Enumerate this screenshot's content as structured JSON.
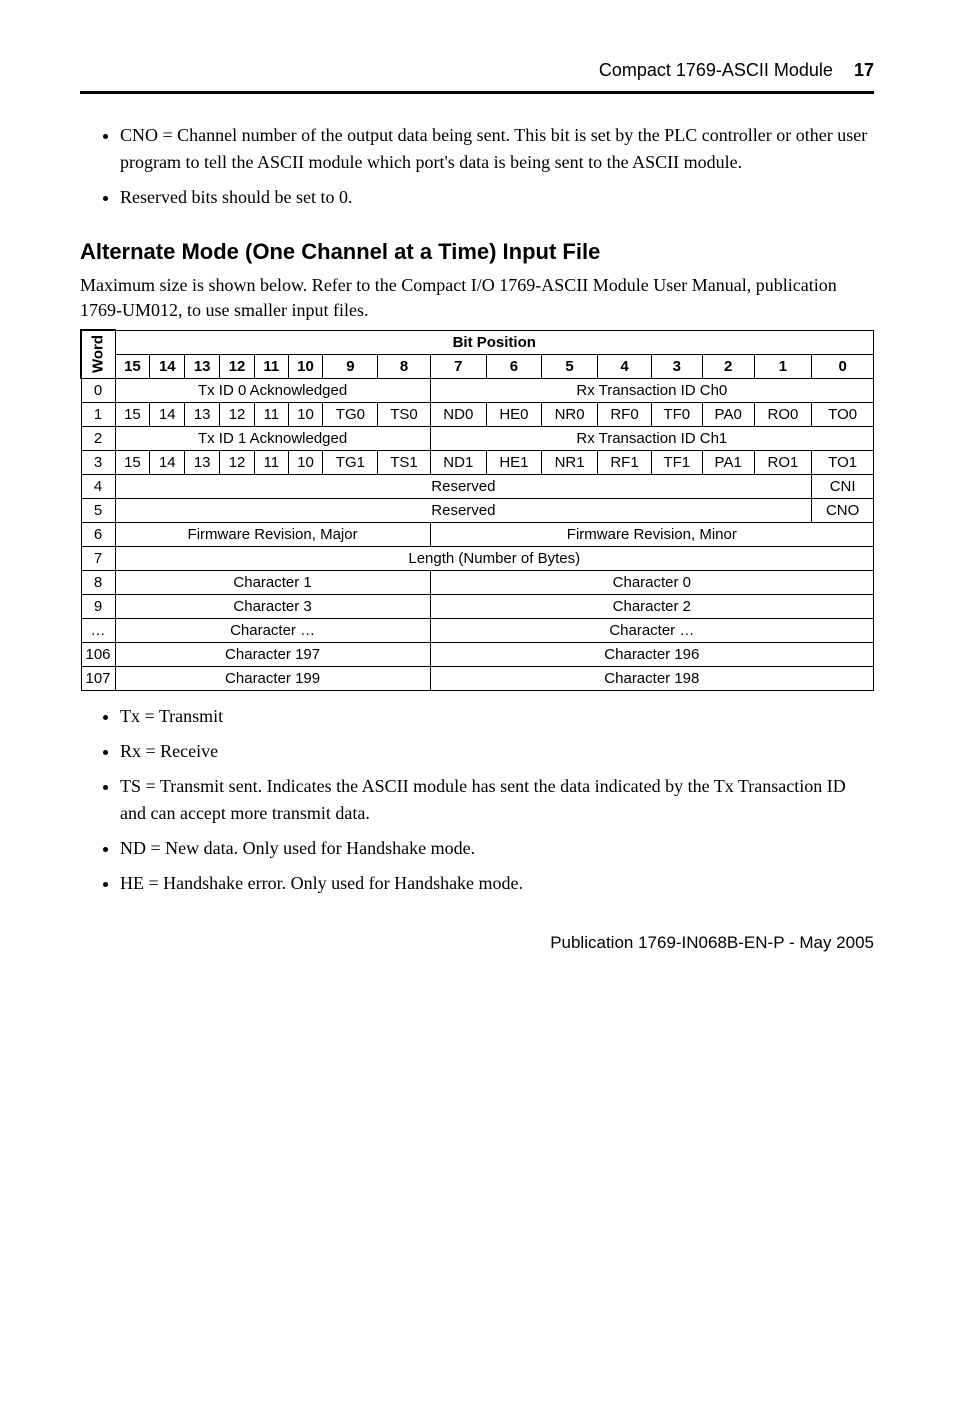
{
  "header": {
    "module_name": "Compact 1769-ASCII Module",
    "page_number": "17"
  },
  "top_bullets": [
    "CNO = Channel number of the output data being sent. This bit is set by the PLC controller or other user program to tell the ASCII module which port's data is being sent to the ASCII module.",
    "Reserved bits should be set to 0."
  ],
  "section": {
    "heading": "Alternate Mode (One Channel at a Time) Input File",
    "desc": "Maximum size is shown below. Refer to the Compact I/O 1769-ASCII Module User Manual, publication 1769-UM012, to use smaller input files."
  },
  "table": {
    "word_label": "Word",
    "bit_position_label": "Bit Position",
    "bit_headers": [
      "15",
      "14",
      "13",
      "12",
      "11",
      "10",
      "9",
      "8",
      "7",
      "6",
      "5",
      "4",
      "3",
      "2",
      "1",
      "0"
    ],
    "rows": {
      "r0": {
        "idx": "0",
        "left": "Tx ID 0 Acknowledged",
        "right": "Rx Transaction ID Ch0"
      },
      "r1": {
        "idx": "1",
        "b15": "15",
        "b14": "14",
        "b13": "13",
        "b12": "12",
        "b11": "11",
        "b10": "10",
        "b9": "TG0",
        "b8": "TS0",
        "b7": "ND0",
        "b6": "HE0",
        "b5": "NR0",
        "b4": "RF0",
        "b3": "TF0",
        "b2": "PA0",
        "b1": "RO0",
        "b0": "TO0"
      },
      "r2": {
        "idx": "2",
        "left": "Tx ID 1 Acknowledged",
        "right": "Rx Transaction ID Ch1"
      },
      "r3": {
        "idx": "3",
        "b15": "15",
        "b14": "14",
        "b13": "13",
        "b12": "12",
        "b11": "11",
        "b10": "10",
        "b9": "TG1",
        "b8": "TS1",
        "b7": "ND1",
        "b6": "HE1",
        "b5": "NR1",
        "b4": "RF1",
        "b3": "TF1",
        "b2": "PA1",
        "b1": "RO1",
        "b0": "TO1"
      },
      "r4": {
        "idx": "4",
        "main": "Reserved",
        "last": "CNI"
      },
      "r5": {
        "idx": "5",
        "main": "Reserved",
        "last": "CNO"
      },
      "r6": {
        "idx": "6",
        "left": "Firmware Revision, Major",
        "right": "Firmware Revision, Minor"
      },
      "r7": {
        "idx": "7",
        "full": "Length (Number of Bytes)"
      },
      "r8": {
        "idx": "8",
        "left": "Character 1",
        "right": "Character 0"
      },
      "r9": {
        "idx": "9",
        "left": "Character 3",
        "right": "Character 2"
      },
      "rdots": {
        "idx": "…",
        "left": "Character …",
        "right": "Character …"
      },
      "r106": {
        "idx": "106",
        "left": "Character 197",
        "right": "Character 196"
      },
      "r107": {
        "idx": "107",
        "left": "Character 199",
        "right": "Character 198"
      }
    }
  },
  "footer_bullets": [
    "Tx = Transmit",
    "Rx = Receive",
    "TS = Transmit sent. Indicates the ASCII module has sent the data indicated by the Tx Transaction ID and can accept more transmit data.",
    "ND = New data. Only used for Handshake mode.",
    "HE = Handshake error. Only used for Handshake mode."
  ],
  "publication": "Publication 1769-IN068B-EN-P - May 2005"
}
